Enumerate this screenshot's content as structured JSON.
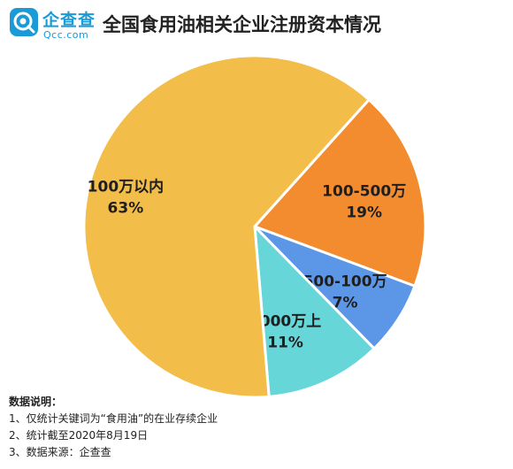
{
  "brand": {
    "name_cn": "企查查",
    "name_en": "Qcc.com",
    "color": "#1a9bd7"
  },
  "title": "全国食用油相关企业注册资本情况",
  "chart_data": {
    "type": "pie",
    "title": "全国食用油相关企业注册资本情况",
    "slices": [
      {
        "label": "100-500万",
        "value": 19,
        "value_label": "19%",
        "color": "#f28c2e"
      },
      {
        "label": "500-100万",
        "value": 7,
        "value_label": "7%",
        "color": "#5b97e6"
      },
      {
        "label": "1000万上",
        "value": 11,
        "value_label": "11%",
        "color": "#66d6d8"
      },
      {
        "label": "100万以内",
        "value": 63,
        "value_label": "63%",
        "color": "#f2bd49"
      }
    ],
    "legend": "none"
  },
  "notes": {
    "title": "数据说明：",
    "items": [
      "1、仅统计关键词为“食用油”的在业存续企业",
      "2、统计截至2020年8月19日",
      "3、数据来源：企查查"
    ]
  }
}
